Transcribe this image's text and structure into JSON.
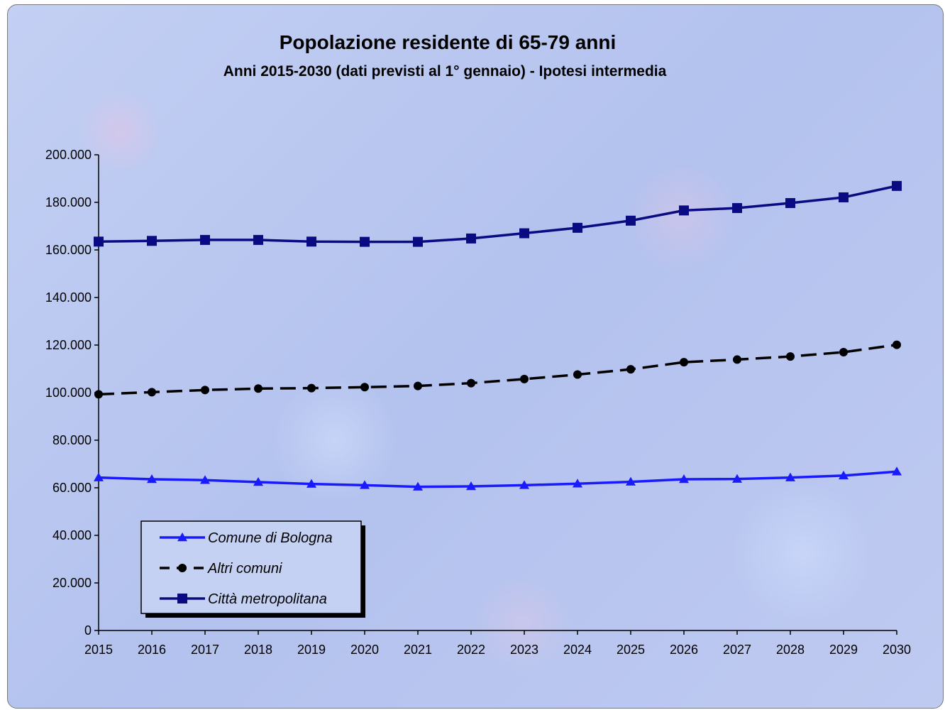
{
  "chart_data": {
    "type": "line",
    "title": "Popolazione residente di 65-79 anni",
    "subtitle": "Anni 2015-2030 (dati previsti al 1° gennaio) - Ipotesi intermedia",
    "xlabel": "",
    "ylabel": "",
    "x": [
      "2015",
      "2016",
      "2017",
      "2018",
      "2019",
      "2020",
      "2021",
      "2022",
      "2023",
      "2024",
      "2025",
      "2026",
      "2027",
      "2028",
      "2029",
      "2030"
    ],
    "ylim": [
      0,
      200000
    ],
    "yticks": [
      0,
      20000,
      40000,
      60000,
      80000,
      100000,
      120000,
      140000,
      160000,
      180000,
      200000
    ],
    "ytick_labels": [
      "0",
      "20.000",
      "40.000",
      "60.000",
      "80.000",
      "100.000",
      "120.000",
      "140.000",
      "160.000",
      "180.000",
      "200.000"
    ],
    "grid": false,
    "legend_position": "bottom-left",
    "series": [
      {
        "name": "Comune di Bologna",
        "color": "#1a1aff",
        "marker": "triangle",
        "dash": "solid",
        "values": [
          64300,
          63600,
          63200,
          62400,
          61600,
          61100,
          60400,
          60600,
          61100,
          61700,
          62500,
          63600,
          63700,
          64300,
          65100,
          66800
        ]
      },
      {
        "name": "Altri comuni",
        "color": "#000000",
        "marker": "circle",
        "dash": "dashed",
        "values": [
          99300,
          100200,
          101100,
          101700,
          101900,
          102300,
          102800,
          104000,
          105700,
          107600,
          109800,
          112800,
          113900,
          115200,
          117000,
          120100
        ]
      },
      {
        "name": "Città metropolitana",
        "color": "#0a0a82",
        "marker": "square",
        "dash": "solid",
        "values": [
          163500,
          163800,
          164200,
          164200,
          163500,
          163400,
          163400,
          164800,
          167000,
          169300,
          172300,
          176600,
          177600,
          179700,
          182100,
          186900
        ]
      }
    ]
  }
}
